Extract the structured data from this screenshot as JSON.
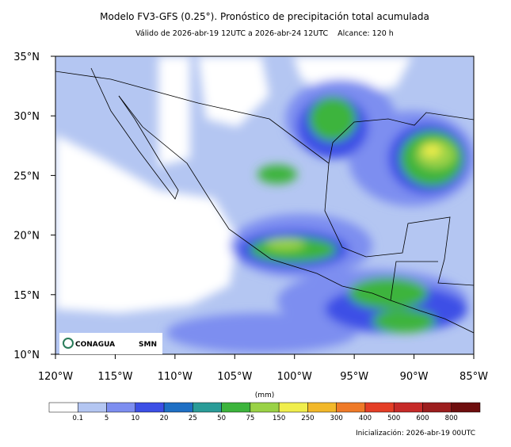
{
  "header": {
    "title": "Modelo FV3-GFS (0.25°). Pronóstico de precipitación total acumulada",
    "subtitle": "Válido de 2026-abr-19 12UTC a 2026-abr-24 12UTC    Alcance: 120 h"
  },
  "map": {
    "lon_labels": [
      "120°W",
      "115°W",
      "110°W",
      "105°W",
      "100°W",
      "95°W",
      "90°W",
      "85°W"
    ],
    "lat_labels": [
      "35°N",
      "30°N",
      "25°N",
      "20°N",
      "15°N",
      "10°N"
    ],
    "logos": [
      "CONAGUA",
      "SMN"
    ]
  },
  "colorbar": {
    "unit": "(mm)",
    "labels": [
      "0.1",
      "5",
      "10",
      "20",
      "25",
      "50",
      "75",
      "150",
      "250",
      "300",
      "400",
      "500",
      "600",
      "800"
    ],
    "colors": [
      "#ffffff",
      "#b4c6f2",
      "#7d8ef0",
      "#3c4fe6",
      "#1f6fc4",
      "#2a9c98",
      "#3cb43c",
      "#9ad246",
      "#f0ee4c",
      "#f2b82a",
      "#ef7a28",
      "#e43e26",
      "#c62a28",
      "#9c1e1e",
      "#6e0e0e"
    ]
  },
  "footer": {
    "init": "Inicialización: 2026-abr-19 00UTC"
  }
}
